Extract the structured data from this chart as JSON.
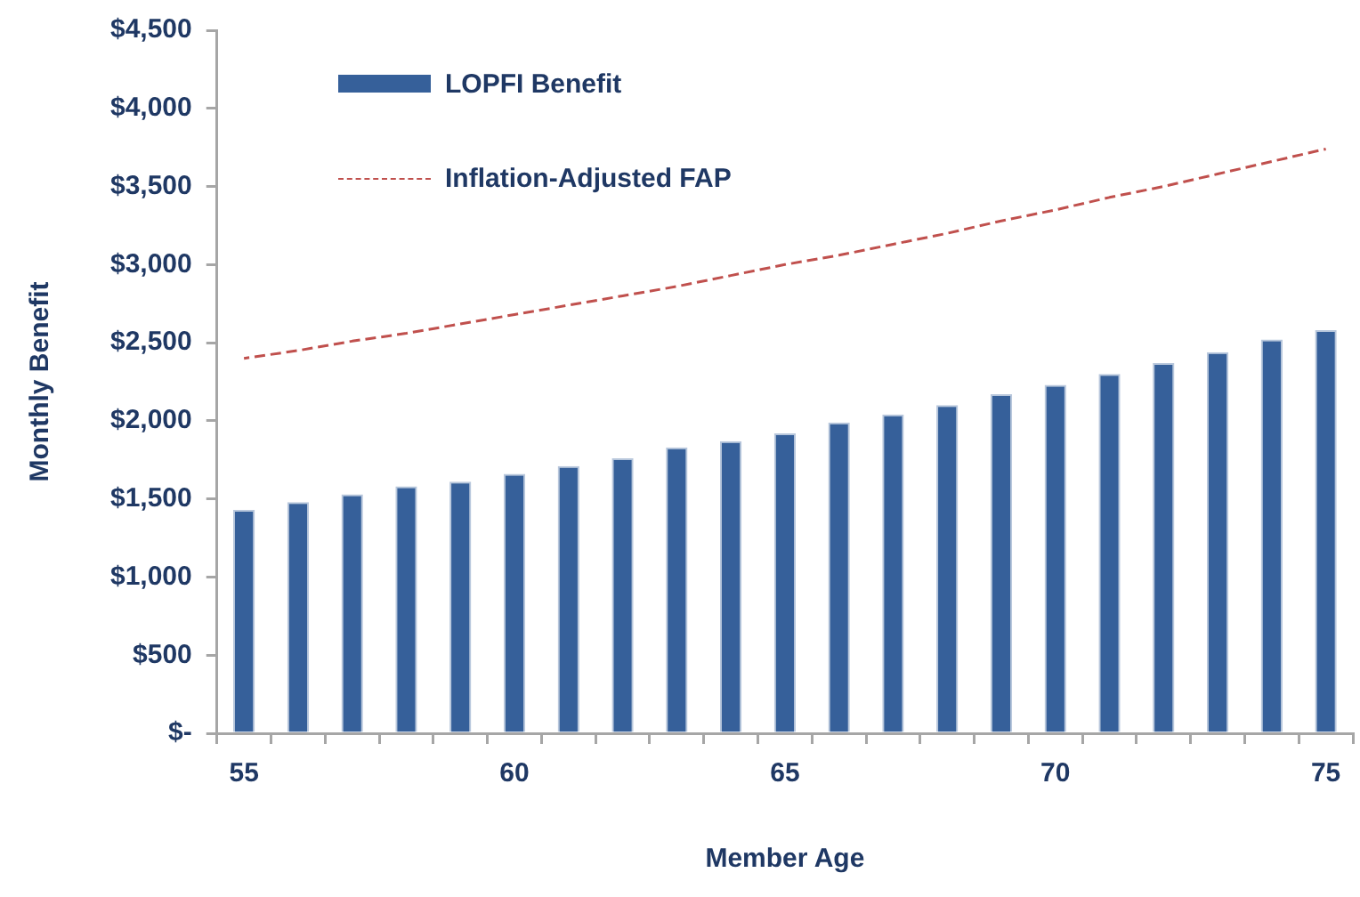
{
  "chart_data": {
    "type": "bar",
    "xlabel": "Member Age",
    "ylabel": "Monthly Benefit",
    "categories": [
      "55",
      null,
      null,
      null,
      null,
      "60",
      null,
      null,
      null,
      null,
      "65",
      null,
      null,
      null,
      null,
      "70",
      null,
      null,
      null,
      null,
      "75"
    ],
    "series": [
      {
        "name": "LOPFI Benefit",
        "color": "#36609a",
        "values": [
          1430,
          1480,
          1530,
          1580,
          1610,
          1660,
          1710,
          1760,
          1830,
          1870,
          1920,
          1990,
          2040,
          2100,
          2170,
          2230,
          2300,
          2370,
          2440,
          2520,
          2580
        ]
      },
      {
        "name": "Inflation-Adjusted FAP",
        "type": "line",
        "color": "#c0504d",
        "line_style": "dashed",
        "marker": "none",
        "values": [
          2400,
          2450,
          2510,
          2560,
          2620,
          2680,
          2740,
          2800,
          2860,
          2930,
          3000,
          3060,
          3130,
          3200,
          3280,
          3350,
          3430,
          3500,
          3580,
          3660,
          3740
        ]
      }
    ],
    "ylim": [
      0,
      4500
    ],
    "yticks": [
      {
        "value": 0,
        "label": "$-"
      },
      {
        "value": 500,
        "label": "$500"
      },
      {
        "value": 1000,
        "label": "$1,000"
      },
      {
        "value": 1500,
        "label": "$1,500"
      },
      {
        "value": 2000,
        "label": "$2,000"
      },
      {
        "value": 2500,
        "label": "$2,500"
      },
      {
        "value": 3000,
        "label": "$3,000"
      },
      {
        "value": 3500,
        "label": "$3,500"
      },
      {
        "value": 4000,
        "label": "$4,000"
      },
      {
        "value": 4500,
        "label": "$4,500"
      }
    ],
    "grid": false,
    "legend": "top left"
  }
}
